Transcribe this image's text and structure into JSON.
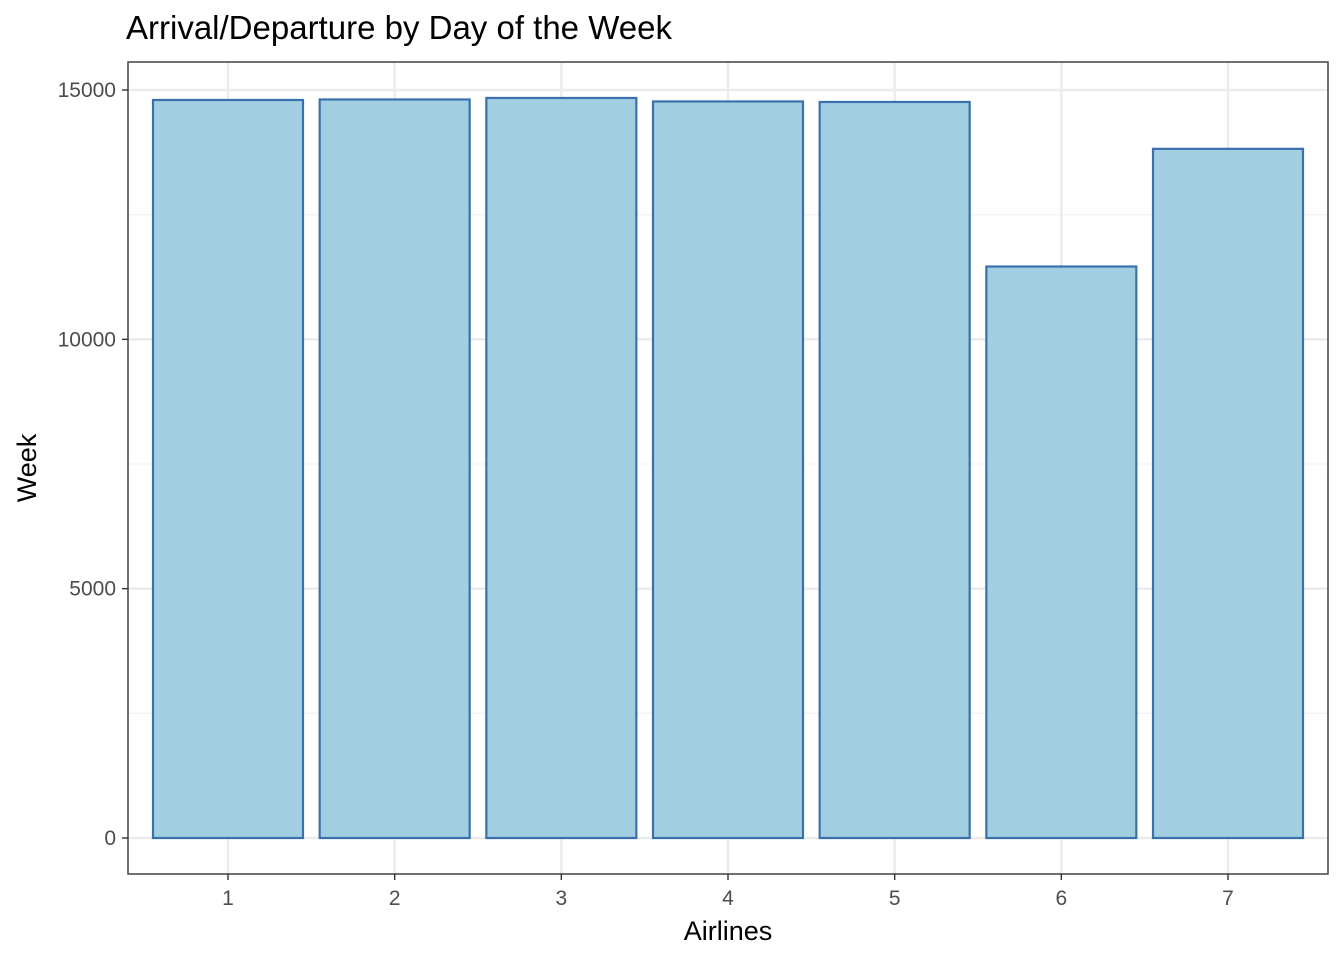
{
  "chart_data": {
    "type": "bar",
    "title": "Arrival/Departure by Day of the Week",
    "xlabel": "Airlines",
    "ylabel": "Week",
    "categories": [
      "1",
      "2",
      "3",
      "4",
      "5",
      "6",
      "7"
    ],
    "values": [
      14800,
      14810,
      14840,
      14770,
      14760,
      11460,
      13820
    ],
    "ylim": [
      -700,
      15560
    ],
    "yticks": [
      0,
      5000,
      10000,
      15000
    ],
    "grid": true,
    "legend": "none",
    "colors": {
      "bar_fill": "#a1cfe1",
      "bar_stroke": "#3a70ad",
      "grid_major": "#ebebeb",
      "grid_minor": "#f3f3f3",
      "panel_border": "#333333",
      "tick_text": "#4d4d4d"
    }
  }
}
